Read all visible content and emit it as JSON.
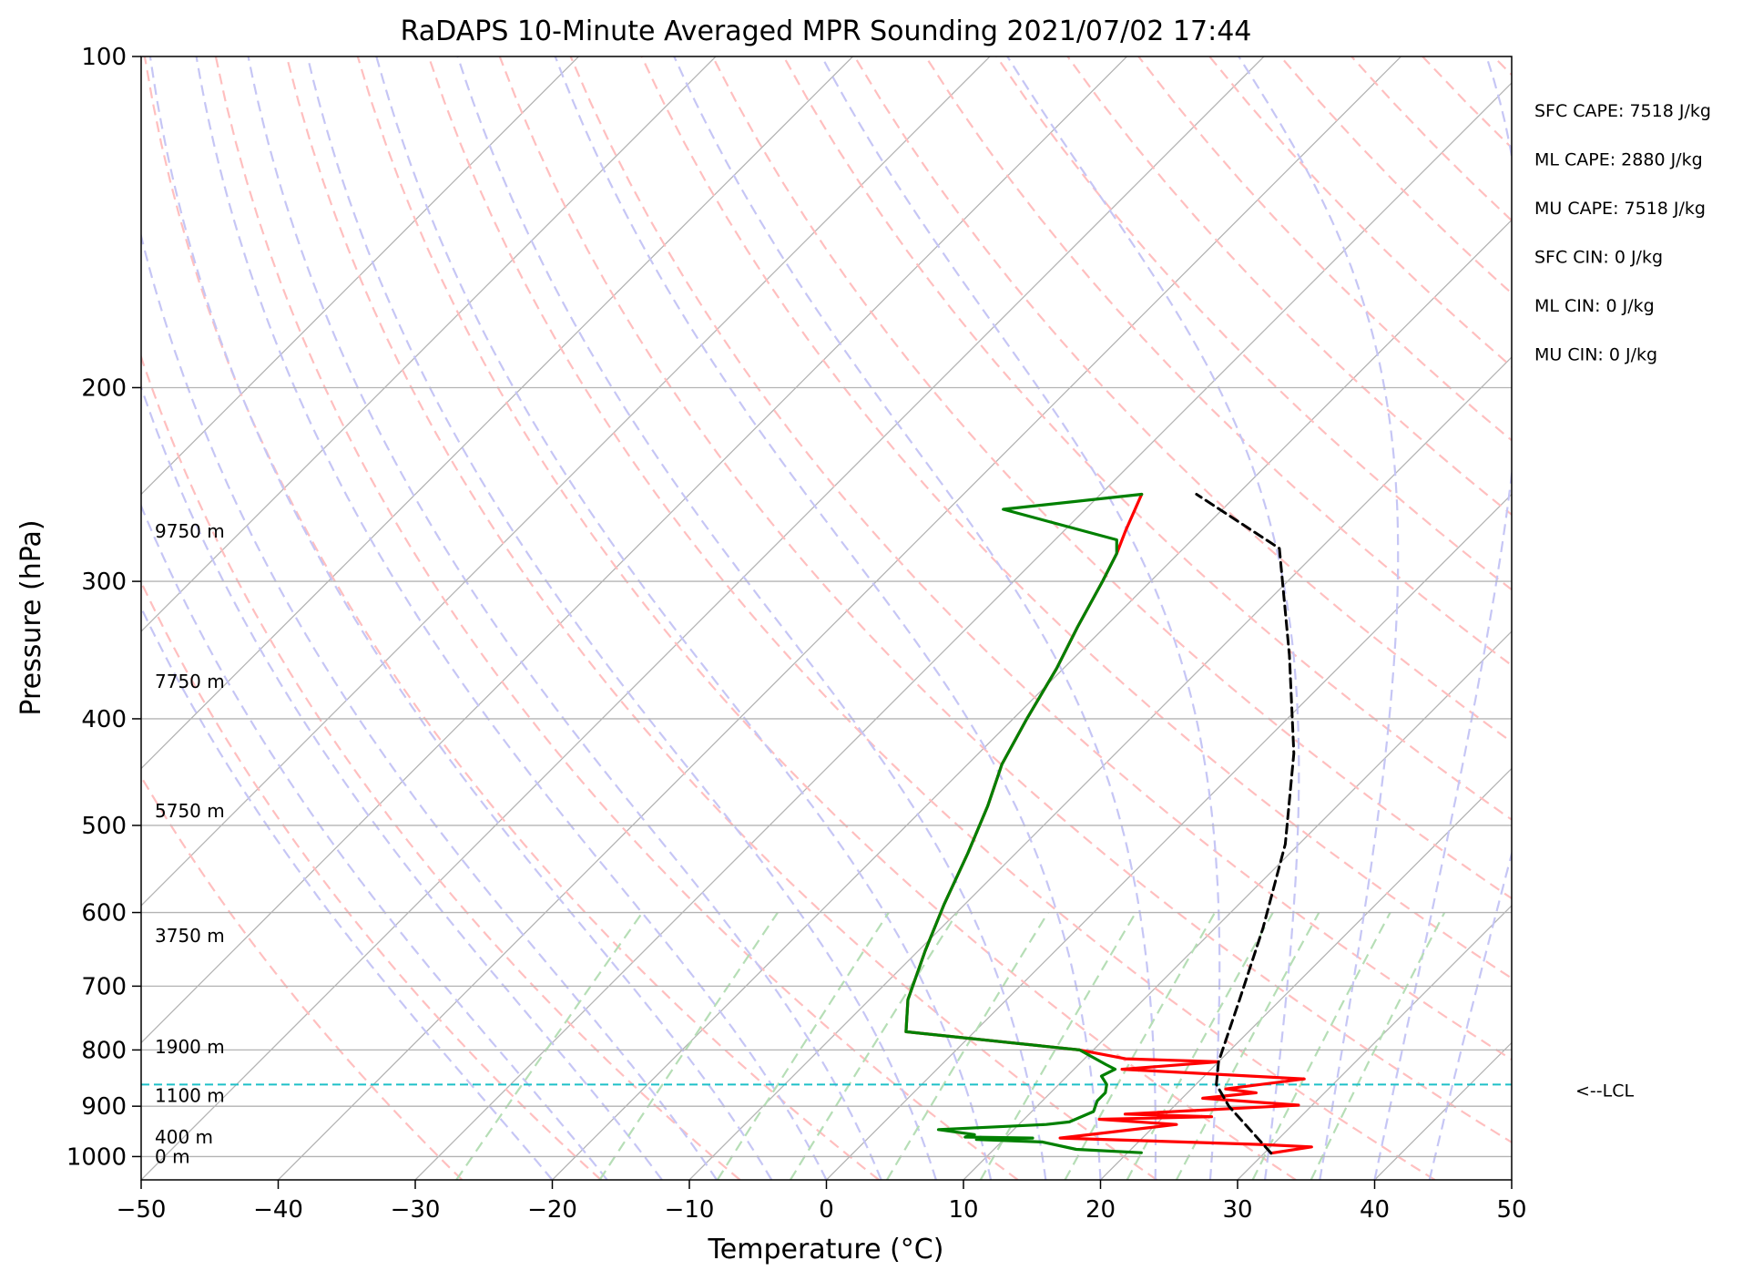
{
  "chart_data": {
    "type": "line",
    "title": "RaDAPS 10-Minute Averaged MPR Sounding 2021/07/02 17:44",
    "xlabel": "Temperature (°C)",
    "ylabel": "Pressure (hPa)",
    "xlim": [
      -50,
      50
    ],
    "ylim": [
      1050,
      100
    ],
    "y_scale": "log",
    "x_ticks": [
      "−50",
      "−40",
      "−30",
      "−20",
      "−10",
      "0",
      "10",
      "20",
      "30",
      "40",
      "50"
    ],
    "x_tick_values": [
      -50,
      -40,
      -30,
      -20,
      -10,
      0,
      10,
      20,
      30,
      40,
      50
    ],
    "y_ticks": [
      "100",
      "200",
      "300",
      "400",
      "500",
      "600",
      "700",
      "800",
      "900",
      "1000"
    ],
    "y_tick_values": [
      100,
      200,
      300,
      400,
      500,
      600,
      700,
      800,
      900,
      1000
    ],
    "grid": true,
    "skew_degrees": 45,
    "height_labels": [
      {
        "text": "9750 m",
        "p": 270
      },
      {
        "text": "7750 m",
        "p": 370
      },
      {
        "text": "5750 m",
        "p": 485
      },
      {
        "text": "3750 m",
        "p": 630
      },
      {
        "text": "1900 m",
        "p": 795
      },
      {
        "text": "1100 m",
        "p": 880
      },
      {
        "text": "400 m",
        "p": 960
      },
      {
        "text": "0 m",
        "p": 1000
      }
    ],
    "stats": [
      "SFC CAPE: 7518 J/kg",
      "ML CAPE: 2880 J/kg",
      "MU CAPE: 7518 J/kg",
      "SFC CIN: 0 J/kg",
      "ML CIN: 0 J/kg",
      "MU CIN: 0 J/kg"
    ],
    "lcl": {
      "label": "<--LCL",
      "p": 860
    },
    "series": [
      {
        "role": "temperature",
        "color": "#ff0000",
        "points": [
          [
            30.5,
            993
          ],
          [
            33.0,
            980
          ],
          [
            29.0,
            975
          ],
          [
            14.0,
            962
          ],
          [
            21.5,
            935
          ],
          [
            15.5,
            925
          ],
          [
            23.5,
            920
          ],
          [
            17.0,
            915
          ],
          [
            29.0,
            898
          ],
          [
            21.5,
            885
          ],
          [
            25.0,
            875
          ],
          [
            22.5,
            868
          ],
          [
            27.5,
            850
          ],
          [
            13.5,
            833
          ],
          [
            20.0,
            820
          ],
          [
            13.0,
            815
          ],
          [
            9.0,
            800
          ],
          [
            -5.0,
            770
          ],
          [
            -7.2,
            720
          ],
          [
            -9.5,
            650
          ],
          [
            -11.5,
            590
          ],
          [
            -13.5,
            530
          ],
          [
            -15.5,
            480
          ],
          [
            -17.5,
            440
          ],
          [
            -19.0,
            400
          ],
          [
            -20.5,
            360
          ],
          [
            -22.0,
            330
          ],
          [
            -23.5,
            300
          ],
          [
            -24.5,
            283
          ],
          [
            -25.5,
            270
          ],
          [
            -27.0,
            250
          ]
        ]
      },
      {
        "role": "dewpoint",
        "color": "#008000",
        "points": [
          [
            21.0,
            992
          ],
          [
            16.0,
            985
          ],
          [
            13.0,
            970
          ],
          [
            8.0,
            965
          ],
          [
            12.0,
            962
          ],
          [
            7.0,
            960
          ],
          [
            7.5,
            955
          ],
          [
            4.5,
            945
          ],
          [
            12.0,
            935
          ],
          [
            13.5,
            930
          ],
          [
            14.5,
            910
          ],
          [
            14.0,
            890
          ],
          [
            14.0,
            875
          ],
          [
            13.5,
            860
          ],
          [
            12.5,
            845
          ],
          [
            13.0,
            833
          ],
          [
            12.0,
            825
          ],
          [
            9.0,
            800
          ],
          [
            -5.0,
            770
          ],
          [
            -7.2,
            720
          ],
          [
            -9.5,
            650
          ],
          [
            -11.5,
            590
          ],
          [
            -13.5,
            530
          ],
          [
            -15.5,
            480
          ],
          [
            -17.5,
            440
          ],
          [
            -19.0,
            400
          ],
          [
            -20.5,
            360
          ],
          [
            -22.0,
            330
          ],
          [
            -23.5,
            300
          ],
          [
            -24.5,
            283
          ],
          [
            -25.5,
            275
          ],
          [
            -36.0,
            258
          ],
          [
            -27.0,
            250
          ]
        ]
      },
      {
        "role": "parcel",
        "color": "#000000",
        "points": [
          [
            30.5,
            993
          ],
          [
            24.0,
            900
          ],
          [
            21.5,
            860
          ],
          [
            20.0,
            820
          ],
          [
            17.0,
            720
          ],
          [
            13.5,
            620
          ],
          [
            9.0,
            520
          ],
          [
            3.0,
            430
          ],
          [
            -4.5,
            350
          ],
          [
            -13.0,
            280
          ],
          [
            -23.0,
            250
          ]
        ]
      }
    ],
    "reference_line_colors": {
      "isotherm": "#b3b3b3",
      "dry_adiabat": "#ffbfbf",
      "moist_adiabat": "#c6c6f5",
      "mixing_ratio": "#b6deb6",
      "lcl": "#1ec0c8"
    }
  }
}
